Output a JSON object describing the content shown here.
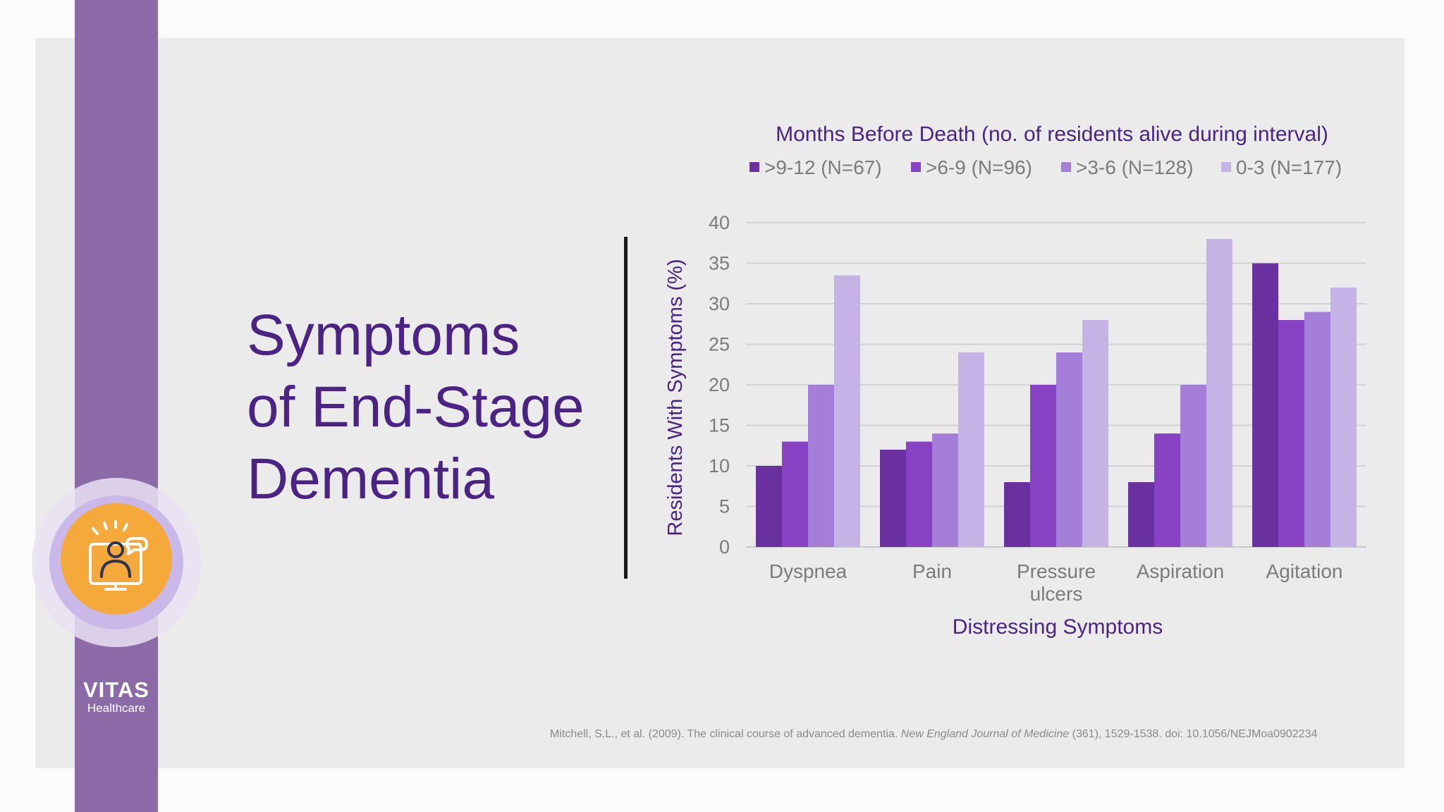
{
  "slide": {
    "title_lines": [
      "Symptoms",
      "of End-Stage",
      "Dementia"
    ],
    "logo": {
      "name": "VITAS",
      "sub": "Healthcare"
    },
    "badge_icon": "person-at-monitor-with-chat-icon",
    "citation": {
      "before": "Mitchell, S.L., et al. (2009). The clinical course of advanced dementia. ",
      "journal": "New England Journal of Medicine",
      "after": " (361), 1529-1538. doi: 10.1056/NEJMoa0902234"
    },
    "colors": {
      "title": "#4a2384",
      "stripe": "#8c6aa8",
      "badge": "#f4a93a",
      "panel": "#ebebeb"
    }
  },
  "chart_data": {
    "type": "bar",
    "title": "Months Before Death (no. of residents alive during interval)",
    "xlabel": "Distressing Symptoms",
    "ylabel": "Residents With Symptoms (%)",
    "ylim": [
      0,
      40
    ],
    "yticks": [
      0,
      5,
      10,
      15,
      20,
      25,
      30,
      35,
      40
    ],
    "grid": true,
    "legend_position": "top",
    "categories": [
      "Dyspnea",
      "Pain",
      "Pressure ulcers",
      "Aspiration",
      "Agitation"
    ],
    "category_lines": [
      [
        "Dyspnea"
      ],
      [
        "Pain"
      ],
      [
        "Pressure",
        "ulcers"
      ],
      [
        "Aspiration"
      ],
      [
        "Agitation"
      ]
    ],
    "series": [
      {
        "name": ">9-12 (N=67)",
        "color": "#6a30a0",
        "values": [
          10,
          12,
          8,
          8,
          35
        ]
      },
      {
        "name": ">6-9 (N=96)",
        "color": "#8843c4",
        "values": [
          13,
          13,
          20,
          14,
          28
        ]
      },
      {
        "name": ">3-6 (N=128)",
        "color": "#a47ed8",
        "values": [
          20,
          14,
          24,
          20,
          29
        ]
      },
      {
        "name": "0-3 (N=177)",
        "color": "#c6b3e5",
        "values": [
          33.5,
          24,
          28,
          38,
          32
        ]
      }
    ]
  }
}
